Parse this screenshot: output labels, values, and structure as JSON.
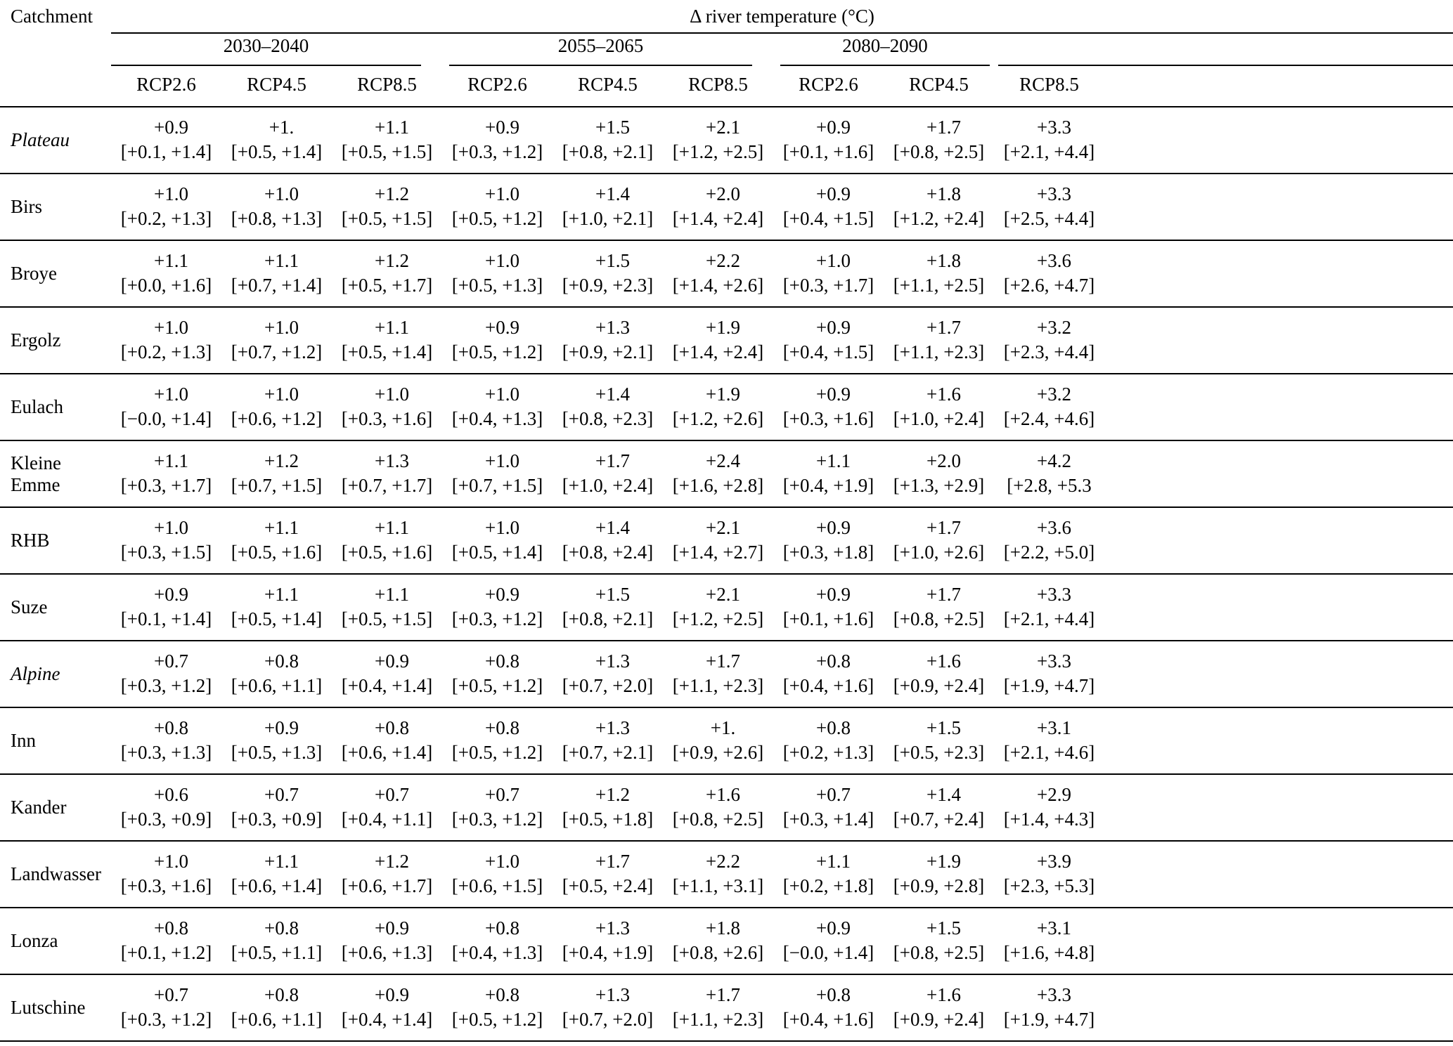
{
  "table": {
    "corner_label": "Catchment",
    "spanner_label": "Δ river temperature (°C)",
    "periods": [
      "2030–2040",
      "2055–2065",
      "2080–2090"
    ],
    "scenarios": [
      "RCP2.6",
      "RCP4.5",
      "RCP8.5"
    ],
    "rows": [
      {
        "name": "Plateau",
        "italic": true,
        "cells": [
          {
            "v": "+0.9",
            "r": "[+0.1, +1.4]"
          },
          {
            "v": "+1.",
            "r": "[+0.5, +1.4]"
          },
          {
            "v": "+1.1",
            "r": "[+0.5, +1.5]"
          },
          {
            "v": "+0.9",
            "r": "[+0.3, +1.2]"
          },
          {
            "v": "+1.5",
            "r": "[+0.8, +2.1]"
          },
          {
            "v": "+2.1",
            "r": "[+1.2, +2.5]"
          },
          {
            "v": "+0.9",
            "r": "[+0.1, +1.6]"
          },
          {
            "v": "+1.7",
            "r": "[+0.8, +2.5]"
          },
          {
            "v": "+3.3",
            "r": "[+2.1, +4.4]"
          }
        ]
      },
      {
        "name": "Birs",
        "italic": false,
        "cells": [
          {
            "v": "+1.0",
            "r": "[+0.2, +1.3]"
          },
          {
            "v": "+1.0",
            "r": "[+0.8, +1.3]"
          },
          {
            "v": "+1.2",
            "r": "[+0.5, +1.5]"
          },
          {
            "v": "+1.0",
            "r": "[+0.5, +1.2]"
          },
          {
            "v": "+1.4",
            "r": "[+1.0, +2.1]"
          },
          {
            "v": "+2.0",
            "r": "[+1.4, +2.4]"
          },
          {
            "v": "+0.9",
            "r": "[+0.4, +1.5]"
          },
          {
            "v": "+1.8",
            "r": "[+1.2, +2.4]"
          },
          {
            "v": "+3.3",
            "r": "[+2.5, +4.4]"
          }
        ]
      },
      {
        "name": "Broye",
        "italic": false,
        "cells": [
          {
            "v": "+1.1",
            "r": "[+0.0, +1.6]"
          },
          {
            "v": "+1.1",
            "r": "[+0.7, +1.4]"
          },
          {
            "v": "+1.2",
            "r": "[+0.5, +1.7]"
          },
          {
            "v": "+1.0",
            "r": "[+0.5, +1.3]"
          },
          {
            "v": "+1.5",
            "r": "[+0.9, +2.3]"
          },
          {
            "v": "+2.2",
            "r": "[+1.4, +2.6]"
          },
          {
            "v": "+1.0",
            "r": "[+0.3, +1.7]"
          },
          {
            "v": "+1.8",
            "r": "[+1.1, +2.5]"
          },
          {
            "v": "+3.6",
            "r": "[+2.6, +4.7]"
          }
        ]
      },
      {
        "name": "Ergolz",
        "italic": false,
        "cells": [
          {
            "v": "+1.0",
            "r": "[+0.2, +1.3]"
          },
          {
            "v": "+1.0",
            "r": "[+0.7, +1.2]"
          },
          {
            "v": "+1.1",
            "r": "[+0.5, +1.4]"
          },
          {
            "v": "+0.9",
            "r": "[+0.5, +1.2]"
          },
          {
            "v": "+1.3",
            "r": "[+0.9, +2.1]"
          },
          {
            "v": "+1.9",
            "r": "[+1.4, +2.4]"
          },
          {
            "v": "+0.9",
            "r": "[+0.4, +1.5]"
          },
          {
            "v": "+1.7",
            "r": "[+1.1, +2.3]"
          },
          {
            "v": "+3.2",
            "r": "[+2.3, +4.4]"
          }
        ]
      },
      {
        "name": "Eulach",
        "italic": false,
        "cells": [
          {
            "v": "+1.0",
            "r": "[−0.0, +1.4]"
          },
          {
            "v": "+1.0",
            "r": "[+0.6, +1.2]"
          },
          {
            "v": "+1.0",
            "r": "[+0.3, +1.6]"
          },
          {
            "v": "+1.0",
            "r": "[+0.4, +1.3]"
          },
          {
            "v": "+1.4",
            "r": "[+0.8, +2.3]"
          },
          {
            "v": "+1.9",
            "r": "[+1.2, +2.6]"
          },
          {
            "v": "+0.9",
            "r": "[+0.3, +1.6]"
          },
          {
            "v": "+1.6",
            "r": "[+1.0, +2.4]"
          },
          {
            "v": "+3.2",
            "r": "[+2.4, +4.6]"
          }
        ]
      },
      {
        "name": "Kleine Emme",
        "italic": false,
        "cells": [
          {
            "v": "+1.1",
            "r": "[+0.3, +1.7]"
          },
          {
            "v": "+1.2",
            "r": "[+0.7, +1.5]"
          },
          {
            "v": "+1.3",
            "r": "[+0.7, +1.7]"
          },
          {
            "v": "+1.0",
            "r": "[+0.7, +1.5]"
          },
          {
            "v": "+1.7",
            "r": "[+1.0, +2.4]"
          },
          {
            "v": "+2.4",
            "r": "[+1.6, +2.8]"
          },
          {
            "v": "+1.1",
            "r": "[+0.4, +1.9]"
          },
          {
            "v": "+2.0",
            "r": "[+1.3, +2.9]"
          },
          {
            "v": "+4.2",
            "r": "[+2.8, +5.3"
          }
        ]
      },
      {
        "name": "RHB",
        "italic": false,
        "cells": [
          {
            "v": "+1.0",
            "r": "[+0.3, +1.5]"
          },
          {
            "v": "+1.1",
            "r": "[+0.5, +1.6]"
          },
          {
            "v": "+1.1",
            "r": "[+0.5, +1.6]"
          },
          {
            "v": "+1.0",
            "r": "[+0.5, +1.4]"
          },
          {
            "v": "+1.4",
            "r": "[+0.8, +2.4]"
          },
          {
            "v": "+2.1",
            "r": "[+1.4, +2.7]"
          },
          {
            "v": "+0.9",
            "r": "[+0.3, +1.8]"
          },
          {
            "v": "+1.7",
            "r": "[+1.0, +2.6]"
          },
          {
            "v": "+3.6",
            "r": "[+2.2, +5.0]"
          }
        ]
      },
      {
        "name": "Suze",
        "italic": false,
        "cells": [
          {
            "v": "+0.9",
            "r": "[+0.1, +1.4]"
          },
          {
            "v": "+1.1",
            "r": "[+0.5, +1.4]"
          },
          {
            "v": "+1.1",
            "r": "[+0.5, +1.5]"
          },
          {
            "v": "+0.9",
            "r": "[+0.3, +1.2]"
          },
          {
            "v": "+1.5",
            "r": "[+0.8, +2.1]"
          },
          {
            "v": "+2.1",
            "r": "[+1.2, +2.5]"
          },
          {
            "v": "+0.9",
            "r": "[+0.1, +1.6]"
          },
          {
            "v": "+1.7",
            "r": "[+0.8, +2.5]"
          },
          {
            "v": "+3.3",
            "r": "[+2.1, +4.4]"
          }
        ]
      },
      {
        "name": "Alpine",
        "italic": true,
        "cells": [
          {
            "v": "+0.7",
            "r": "[+0.3, +1.2]"
          },
          {
            "v": "+0.8",
            "r": "[+0.6, +1.1]"
          },
          {
            "v": "+0.9",
            "r": "[+0.4, +1.4]"
          },
          {
            "v": "+0.8",
            "r": "[+0.5, +1.2]"
          },
          {
            "v": "+1.3",
            "r": "[+0.7, +2.0]"
          },
          {
            "v": "+1.7",
            "r": "[+1.1, +2.3]"
          },
          {
            "v": "+0.8",
            "r": "[+0.4, +1.6]"
          },
          {
            "v": "+1.6",
            "r": "[+0.9, +2.4]"
          },
          {
            "v": "+3.3",
            "r": "[+1.9, +4.7]"
          }
        ]
      },
      {
        "name": "Inn",
        "italic": false,
        "cells": [
          {
            "v": "+0.8",
            "r": "[+0.3, +1.3]"
          },
          {
            "v": "+0.9",
            "r": "[+0.5, +1.3]"
          },
          {
            "v": "+0.8",
            "r": "[+0.6, +1.4]"
          },
          {
            "v": "+0.8",
            "r": "[+0.5, +1.2]"
          },
          {
            "v": "+1.3",
            "r": "[+0.7, +2.1]"
          },
          {
            "v": "+1.",
            "r": "[+0.9, +2.6]"
          },
          {
            "v": "+0.8",
            "r": "[+0.2, +1.3]"
          },
          {
            "v": "+1.5",
            "r": "[+0.5, +2.3]"
          },
          {
            "v": "+3.1",
            "r": "[+2.1, +4.6]"
          }
        ]
      },
      {
        "name": "Kander",
        "italic": false,
        "cells": [
          {
            "v": "+0.6",
            "r": "[+0.3, +0.9]"
          },
          {
            "v": "+0.7",
            "r": "[+0.3, +0.9]"
          },
          {
            "v": "+0.7",
            "r": "[+0.4, +1.1]"
          },
          {
            "v": "+0.7",
            "r": "[+0.3, +1.2]"
          },
          {
            "v": "+1.2",
            "r": "[+0.5, +1.8]"
          },
          {
            "v": "+1.6",
            "r": "[+0.8, +2.5]"
          },
          {
            "v": "+0.7",
            "r": "[+0.3, +1.4]"
          },
          {
            "v": "+1.4",
            "r": "[+0.7, +2.4]"
          },
          {
            "v": "+2.9",
            "r": "[+1.4, +4.3]"
          }
        ]
      },
      {
        "name": "Landwasser",
        "italic": false,
        "cells": [
          {
            "v": "+1.0",
            "r": "[+0.3, +1.6]"
          },
          {
            "v": "+1.1",
            "r": "[+0.6, +1.4]"
          },
          {
            "v": "+1.2",
            "r": "[+0.6, +1.7]"
          },
          {
            "v": "+1.0",
            "r": "[+0.6, +1.5]"
          },
          {
            "v": "+1.7",
            "r": "[+0.5, +2.4]"
          },
          {
            "v": "+2.2",
            "r": "[+1.1, +3.1]"
          },
          {
            "v": "+1.1",
            "r": "[+0.2, +1.8]"
          },
          {
            "v": "+1.9",
            "r": "[+0.9, +2.8]"
          },
          {
            "v": "+3.9",
            "r": "[+2.3, +5.3]"
          }
        ]
      },
      {
        "name": "Lonza",
        "italic": false,
        "cells": [
          {
            "v": "+0.8",
            "r": "[+0.1, +1.2]"
          },
          {
            "v": "+0.8",
            "r": "[+0.5, +1.1]"
          },
          {
            "v": "+0.9",
            "r": "[+0.6, +1.3]"
          },
          {
            "v": "+0.8",
            "r": "[+0.4, +1.3]"
          },
          {
            "v": "+1.3",
            "r": "[+0.4, +1.9]"
          },
          {
            "v": "+1.8",
            "r": "[+0.8, +2.6]"
          },
          {
            "v": "+0.9",
            "r": "[−0.0, +1.4]"
          },
          {
            "v": "+1.5",
            "r": "[+0.8, +2.5]"
          },
          {
            "v": "+3.1",
            "r": "[+1.6, +4.8]"
          }
        ]
      },
      {
        "name": "Lutschine",
        "italic": false,
        "cells": [
          {
            "v": "+0.7",
            "r": "[+0.3, +1.2]"
          },
          {
            "v": "+0.8",
            "r": "[+0.6, +1.1]"
          },
          {
            "v": "+0.9",
            "r": "[+0.4, +1.4]"
          },
          {
            "v": "+0.8",
            "r": "[+0.5, +1.2]"
          },
          {
            "v": "+1.3",
            "r": "[+0.7, +2.0]"
          },
          {
            "v": "+1.7",
            "r": "[+1.1, +2.3]"
          },
          {
            "v": "+0.8",
            "r": "[+0.4, +1.6]"
          },
          {
            "v": "+1.6",
            "r": "[+0.9, +2.4]"
          },
          {
            "v": "+3.3",
            "r": "[+1.9, +4.7]"
          }
        ]
      }
    ]
  }
}
